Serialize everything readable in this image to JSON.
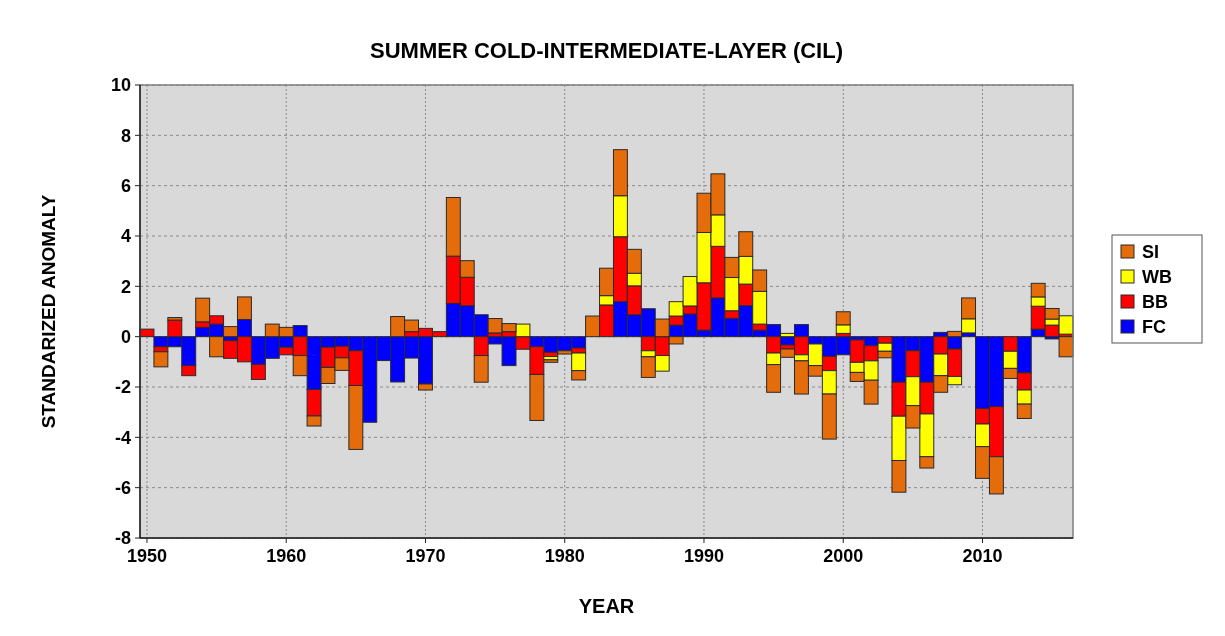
{
  "chart_data": {
    "type": "bar",
    "stacked": true,
    "title": "SUMMER COLD-INTERMEDIATE-LAYER (CIL)",
    "xlabel": "YEAR",
    "ylabel": "STANDARIZED ANOMALY",
    "x": [
      1950,
      1951,
      1952,
      1953,
      1954,
      1955,
      1956,
      1957,
      1958,
      1959,
      1960,
      1961,
      1962,
      1963,
      1964,
      1965,
      1966,
      1967,
      1968,
      1969,
      1970,
      1971,
      1972,
      1973,
      1974,
      1975,
      1976,
      1977,
      1978,
      1979,
      1980,
      1981,
      1982,
      1983,
      1984,
      1985,
      1986,
      1987,
      1988,
      1989,
      1990,
      1991,
      1992,
      1993,
      1994,
      1995,
      1996,
      1997,
      1998,
      1999,
      2000,
      2001,
      2002,
      2003,
      2004,
      2005,
      2006,
      2007,
      2008,
      2009,
      2010,
      2011,
      2012,
      2013,
      2014,
      2015,
      2016
    ],
    "xlim": [
      1949.5,
      2016.5
    ],
    "xticks": [
      1950,
      1960,
      1970,
      1980,
      1990,
      2000,
      2010
    ],
    "ylim": [
      -8,
      10
    ],
    "yticks": [
      -8,
      -6,
      -4,
      -2,
      0,
      2,
      4,
      6,
      8,
      10
    ],
    "grid": true,
    "legend": "right",
    "series": [
      {
        "name": "FC",
        "color": "#0000ff",
        "values": [
          0,
          -0.4,
          -0.4,
          -1.15,
          0.37,
          0.5,
          -0.16,
          0.68,
          -1.1,
          -0.86,
          -0.42,
          0.44,
          -2.1,
          -0.42,
          -0.38,
          -0.56,
          -3.4,
          -0.95,
          -1.8,
          -0.85,
          -1.88,
          0,
          1.32,
          1.23,
          0.87,
          -0.29,
          -1.15,
          0,
          -0.4,
          -0.62,
          -0.56,
          -0.45,
          0,
          0,
          1.39,
          0.87,
          1.11,
          0,
          0.46,
          0.9,
          0.26,
          1.54,
          0.73,
          1.23,
          0.26,
          0.48,
          -0.33,
          0.48,
          -0.29,
          -0.78,
          -0.72,
          -0.13,
          -0.36,
          0,
          -1.81,
          -0.56,
          -1.81,
          0.17,
          -0.49,
          0.15,
          -2.85,
          -2.78,
          0,
          -1.44,
          0.3,
          -0.09,
          0
        ]
      },
      {
        "name": "BB",
        "color": "#ff0000",
        "values": [
          0.3,
          -0.2,
          0.66,
          -0.4,
          0.22,
          0.33,
          -0.7,
          -1.0,
          -0.6,
          0,
          -0.3,
          -0.75,
          -1.05,
          -0.8,
          -0.46,
          -1.38,
          0,
          0,
          0,
          0.2,
          0.33,
          0.2,
          1.88,
          1.13,
          -0.75,
          0.15,
          0.2,
          -0.5,
          -1.1,
          -0.17,
          0,
          -0.2,
          0,
          1.26,
          2.58,
          1.15,
          -0.56,
          -0.75,
          0.36,
          0.32,
          1.88,
          2.05,
          0.3,
          0.86,
          0.24,
          -0.65,
          -0.16,
          -0.72,
          0,
          -0.57,
          0.13,
          -0.89,
          -0.6,
          -0.26,
          -1.35,
          -1.03,
          -1.26,
          -0.69,
          -1.09,
          0,
          -0.62,
          -1.99,
          -0.58,
          -0.68,
          0.91,
          0.46,
          0.1
        ]
      },
      {
        "name": "WB",
        "color": "#ffff00",
        "values": [
          0,
          0,
          0,
          0,
          0,
          0,
          0,
          0,
          0,
          0,
          0,
          0,
          0,
          0,
          0,
          0,
          0,
          0,
          0,
          0,
          0,
          0,
          0,
          0,
          0,
          0,
          0,
          0.5,
          0,
          -0.13,
          0,
          -0.7,
          0,
          0.37,
          1.63,
          0.5,
          -0.24,
          -0.62,
          0.57,
          1.17,
          2.0,
          1.25,
          1.32,
          1.1,
          1.3,
          -0.46,
          0.13,
          -0.24,
          -0.86,
          -0.93,
          0.34,
          -0.4,
          -0.77,
          -0.32,
          -1.76,
          -1.15,
          -1.7,
          -0.86,
          -0.33,
          0.56,
          -0.9,
          0,
          -0.68,
          -0.56,
          0.37,
          0.24,
          0.73
        ]
      },
      {
        "name": "SI",
        "color": "#e46c0a",
        "values": [
          0,
          -0.6,
          0.1,
          0,
          0.94,
          -0.8,
          0.4,
          0.9,
          0,
          0.5,
          0.37,
          -0.8,
          -0.4,
          -0.64,
          -0.5,
          -2.54,
          0,
          0,
          0.8,
          0.46,
          -0.24,
          0,
          2.33,
          0.66,
          -1.06,
          0.57,
          0.32,
          0,
          -1.83,
          -0.1,
          -0.13,
          -0.37,
          0.82,
          1.09,
          1.83,
          0.95,
          -0.82,
          0.7,
          -0.29,
          0,
          1.56,
          1.63,
          0.8,
          0.98,
          0.85,
          -1.1,
          -0.33,
          -1.32,
          -0.42,
          -1.79,
          0.52,
          -0.36,
          -0.95,
          -0.26,
          -1.26,
          -0.89,
          -0.45,
          -0.66,
          0.21,
          0.83,
          -1.26,
          -1.48,
          -0.4,
          -0.57,
          0.54,
          0.42,
          -0.8
        ]
      }
    ]
  }
}
